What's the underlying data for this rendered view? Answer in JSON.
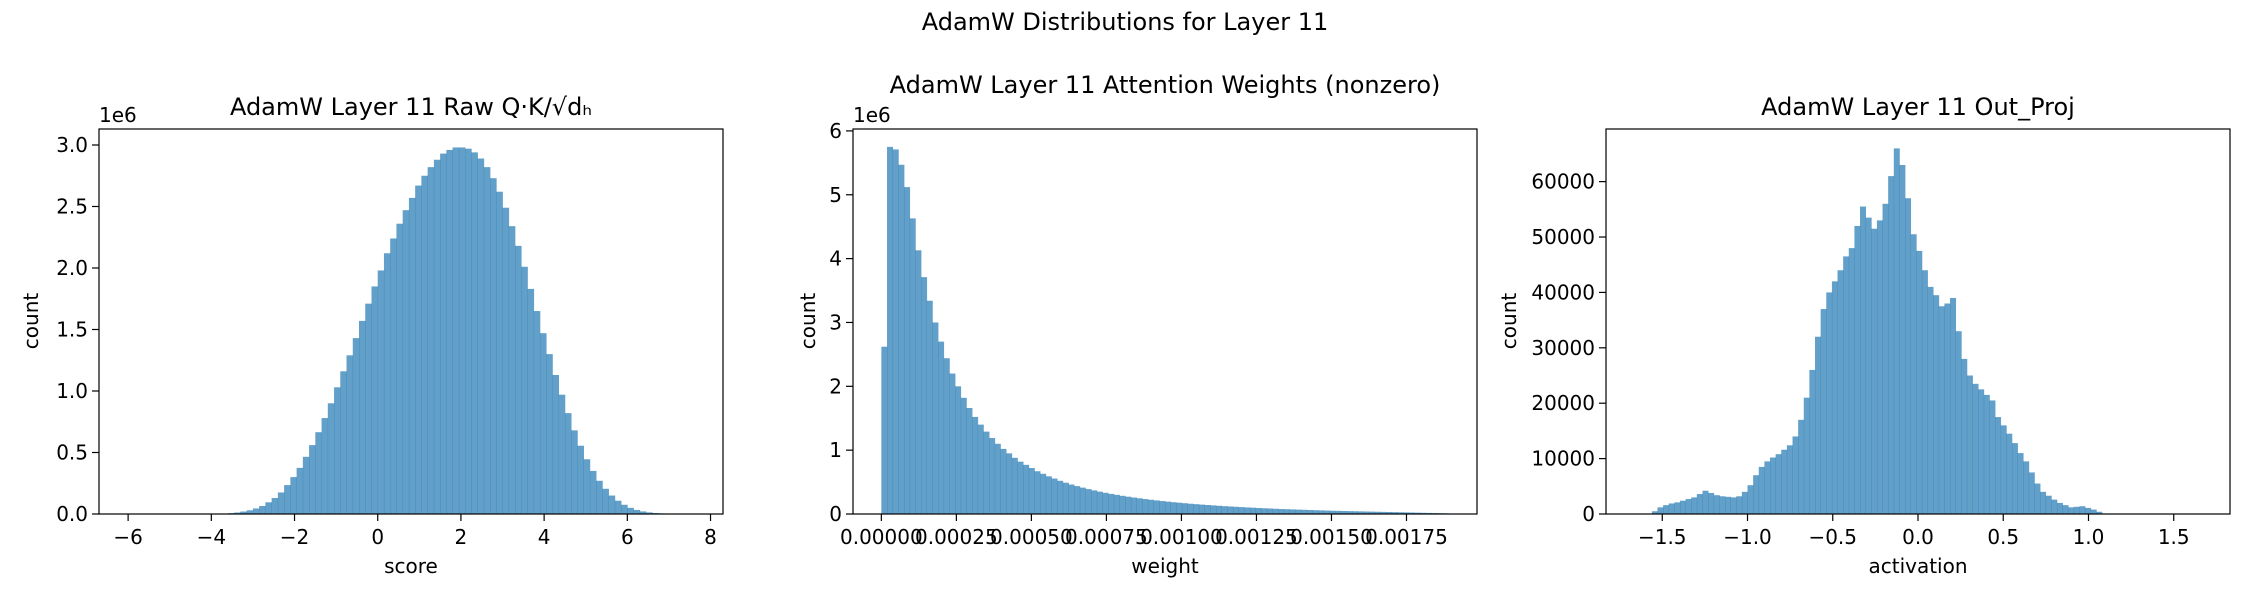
{
  "figure": {
    "suptitle": "AdamW Distributions for Layer 11"
  },
  "chart_data": [
    {
      "type": "bar",
      "title": "AdamW Layer 11 Raw Q·K/√dₕ",
      "xlabel": "score",
      "ylabel": "count",
      "y_multiplier": "1e6",
      "xlim": [
        -6.7,
        8.3
      ],
      "ylim": [
        0,
        3.13
      ],
      "xticks": [
        -6,
        -4,
        -2,
        0,
        2,
        4,
        6,
        8
      ],
      "xtick_labels": [
        "−6",
        "−4",
        "−2",
        "0",
        "2",
        "4",
        "6",
        "8"
      ],
      "yticks": [
        0,
        0.5,
        1.0,
        1.5,
        2.0,
        2.5,
        3.0
      ],
      "ytick_labels": [
        "0.0",
        "0.5",
        "1.0",
        "1.5",
        "2.0",
        "2.5",
        "3.0"
      ],
      "bin_start": -6.0,
      "bin_width": 0.15,
      "values": [
        0,
        0,
        0,
        0,
        0,
        0,
        0,
        0,
        0,
        0,
        0,
        0,
        0,
        0,
        0.002,
        0.004,
        0.007,
        0.012,
        0.02,
        0.03,
        0.045,
        0.065,
        0.095,
        0.13,
        0.175,
        0.235,
        0.3,
        0.375,
        0.465,
        0.56,
        0.665,
        0.78,
        0.9,
        1.03,
        1.16,
        1.29,
        1.43,
        1.57,
        1.71,
        1.85,
        1.98,
        2.12,
        2.24,
        2.36,
        2.47,
        2.57,
        2.67,
        2.75,
        2.82,
        2.88,
        2.93,
        2.96,
        2.98,
        2.98,
        2.97,
        2.94,
        2.89,
        2.82,
        2.73,
        2.62,
        2.49,
        2.34,
        2.18,
        2.01,
        1.83,
        1.65,
        1.47,
        1.3,
        1.13,
        0.97,
        0.82,
        0.68,
        0.555,
        0.445,
        0.35,
        0.27,
        0.205,
        0.15,
        0.108,
        0.075,
        0.05,
        0.033,
        0.021,
        0.013,
        0.008,
        0.005,
        0.003,
        0.002,
        0.001,
        0.0005
      ]
    },
    {
      "type": "bar",
      "title": "AdamW Layer 11 Attention Weights (nonzero)",
      "xlabel": "weight",
      "ylabel": "count",
      "y_multiplier": "1e6",
      "xlim": [
        -9.45e-05,
        0.001985
      ],
      "ylim": [
        0,
        6.03
      ],
      "xticks": [
        0,
        0.00025,
        0.0005,
        0.00075,
        0.001,
        0.00125,
        0.0015,
        0.00175
      ],
      "xtick_labels": [
        "0.00000",
        "0.00025",
        "0.00050",
        "0.00075",
        "0.00100",
        "0.00125",
        "0.00150",
        "0.00175"
      ],
      "yticks": [
        0,
        1,
        2,
        3,
        4,
        5,
        6
      ],
      "ytick_labels": [
        "0",
        "1",
        "2",
        "3",
        "4",
        "5",
        "6"
      ],
      "bin_start": 0,
      "bin_width": 1.89e-05,
      "values": [
        2.62,
        5.75,
        5.71,
        5.47,
        5.12,
        4.63,
        4.13,
        3.71,
        3.34,
        3.0,
        2.7,
        2.44,
        2.2,
        2.0,
        1.82,
        1.66,
        1.52,
        1.4,
        1.29,
        1.19,
        1.1,
        1.02,
        0.95,
        0.88,
        0.82,
        0.77,
        0.72,
        0.67,
        0.63,
        0.59,
        0.555,
        0.52,
        0.49,
        0.462,
        0.437,
        0.413,
        0.39,
        0.37,
        0.35,
        0.332,
        0.315,
        0.3,
        0.285,
        0.271,
        0.258,
        0.246,
        0.234,
        0.223,
        0.213,
        0.203,
        0.194,
        0.185,
        0.177,
        0.169,
        0.161,
        0.154,
        0.147,
        0.141,
        0.135,
        0.129,
        0.123,
        0.118,
        0.113,
        0.108,
        0.103,
        0.099,
        0.094,
        0.09,
        0.086,
        0.082,
        0.078,
        0.075,
        0.072,
        0.069,
        0.066,
        0.063,
        0.06,
        0.057,
        0.054,
        0.051,
        0.049,
        0.047,
        0.045,
        0.043,
        0.041,
        0.039,
        0.037,
        0.035,
        0.033,
        0.031,
        0.029,
        0.027,
        0.025,
        0.023,
        0.021,
        0.019,
        0.017,
        0.015,
        0.013,
        0.011
      ]
    },
    {
      "type": "bar",
      "title": "AdamW Layer 11 Out_Proj",
      "xlabel": "activation",
      "ylabel": "count",
      "xlim": [
        -1.83,
        1.83
      ],
      "ylim": [
        0,
        69500
      ],
      "xticks": [
        -1.5,
        -1.0,
        -0.5,
        0.0,
        0.5,
        1.0,
        1.5
      ],
      "xtick_labels": [
        "−1.5",
        "−1.0",
        "−0.5",
        "0.0",
        "0.5",
        "1.0",
        "1.5"
      ],
      "yticks": [
        0,
        10000,
        20000,
        30000,
        40000,
        50000,
        60000
      ],
      "ytick_labels": [
        "0",
        "10000",
        "20000",
        "30000",
        "40000",
        "50000",
        "60000"
      ],
      "bin_start": -1.66,
      "bin_width": 0.033,
      "values": [
        0,
        0,
        0,
        500,
        1200,
        1600,
        1900,
        2100,
        2400,
        2700,
        3000,
        3600,
        4200,
        3800,
        3400,
        3200,
        3100,
        3000,
        3200,
        4000,
        5200,
        7000,
        8500,
        9500,
        10200,
        10800,
        11600,
        12400,
        14000,
        17000,
        21000,
        26000,
        32000,
        37000,
        40000,
        42000,
        44000,
        46500,
        48000,
        52000,
        55500,
        53500,
        51500,
        53000,
        56000,
        61000,
        66000,
        63000,
        57000,
        50500,
        47500,
        44000,
        41000,
        39500,
        37500,
        38000,
        39000,
        33000,
        28000,
        25000,
        23500,
        22500,
        21500,
        20500,
        17500,
        16000,
        14500,
        12800,
        11000,
        9500,
        7500,
        5500,
        4000,
        3300,
        2600,
        2000,
        1600,
        1200,
        1300,
        1400,
        1100,
        800,
        400,
        100,
        0,
        0
      ]
    }
  ]
}
